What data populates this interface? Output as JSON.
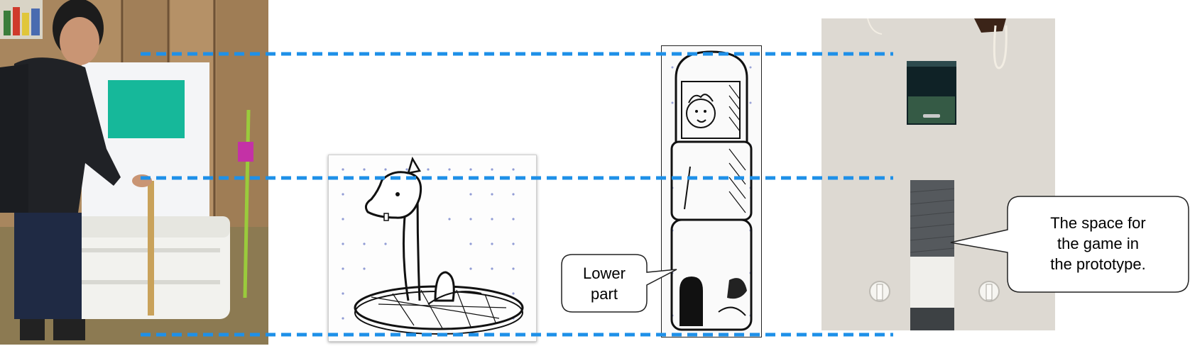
{
  "callouts": {
    "lower_part": "Lower\npart",
    "game_space": "The space for\nthe game in\nthe prototype."
  },
  "colors": {
    "guide_line": "#1e90e8",
    "callout_border": "#222222"
  }
}
